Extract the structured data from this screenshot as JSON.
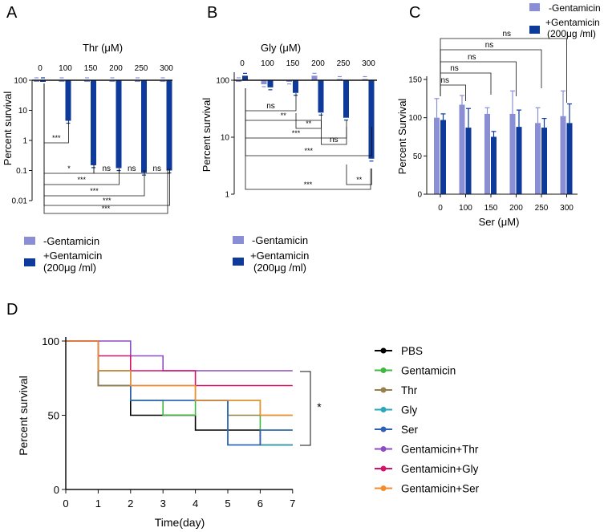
{
  "colors": {
    "light": "#8a8ed4",
    "dark": "#0e3a9c",
    "axis": "#111111"
  },
  "legend_abc": {
    "minus": "-Gentamicin",
    "plus_line1": "+Gentamicin",
    "plus_line2": "(200μg /ml)"
  },
  "chart_data": [
    {
      "panel": "A",
      "type": "bar",
      "title": "Thr (μM)",
      "ylabel": "Percent survival",
      "yscale": "log",
      "ylim": [
        0.01,
        100
      ],
      "yticks": [
        "0.01",
        "0.1",
        "1",
        "10",
        "100"
      ],
      "categories": [
        "0",
        "100",
        "150",
        "200",
        "250",
        "300"
      ],
      "series": [
        {
          "name": "-Gentamicin",
          "values": [
            100,
            100,
            100,
            100,
            100,
            100
          ]
        },
        {
          "name": "+Gentamicin",
          "values": [
            100,
            4.5,
            0.15,
            0.12,
            0.085,
            0.1
          ]
        }
      ],
      "significance": [
        {
          "a": 0,
          "b": 1,
          "label": "***"
        },
        {
          "a": 0,
          "b": 2,
          "label": "*"
        },
        {
          "a": 2,
          "b": 3,
          "label": "ns"
        },
        {
          "a": 3,
          "b": 4,
          "label": "ns"
        },
        {
          "a": 4,
          "b": 5,
          "label": "ns"
        },
        {
          "a": 0,
          "b": 3,
          "label": "***"
        },
        {
          "a": 0,
          "b": 4,
          "label": "***"
        },
        {
          "a": 0,
          "b": 5,
          "label": "***"
        },
        {
          "a": 0,
          "b": 6,
          "label": "***"
        }
      ]
    },
    {
      "panel": "B",
      "type": "bar",
      "title": "Gly (μM)",
      "ylabel": "Percent survival",
      "yscale": "log",
      "ylim": [
        1,
        100
      ],
      "yticks": [
        "1",
        "10",
        "100"
      ],
      "categories": [
        "0",
        "100",
        "150",
        "200",
        "250",
        "300"
      ],
      "series": [
        {
          "name": "-Gentamicin",
          "values": [
            100,
            85,
            95,
            120,
            105,
            105
          ]
        },
        {
          "name": "+Gentamicin",
          "values": [
            120,
            75,
            60,
            27,
            22,
            4.2
          ]
        }
      ],
      "significance": [
        {
          "a": 0,
          "b": 2,
          "label": "ns"
        },
        {
          "a": 0,
          "b": 3,
          "label": "**"
        },
        {
          "a": 2,
          "b": 3,
          "label": "**"
        },
        {
          "a": 0,
          "b": 4,
          "label": "***"
        },
        {
          "a": 3,
          "b": 4,
          "label": "ns"
        },
        {
          "a": 0,
          "b": 5,
          "label": "***"
        },
        {
          "a": 4,
          "b": 5,
          "label": "**"
        },
        {
          "a": 0,
          "b": 6,
          "label": "***"
        }
      ]
    },
    {
      "panel": "C",
      "type": "bar",
      "title": "",
      "xlabel": "Ser (μM)",
      "ylabel": "Percent Survival",
      "yscale": "linear",
      "ylim": [
        0,
        150
      ],
      "yticks": [
        "0",
        "50",
        "100",
        "150"
      ],
      "categories": [
        "0",
        "100",
        "150",
        "200",
        "250",
        "300"
      ],
      "series": [
        {
          "name": "-Gentamicin",
          "values": [
            100,
            117,
            105,
            105,
            93,
            102
          ],
          "errors": [
            25,
            12,
            8,
            30,
            20,
            33
          ]
        },
        {
          "name": "+Gentamicin",
          "values": [
            97,
            87,
            75,
            88,
            87,
            93
          ],
          "errors": [
            8,
            25,
            7,
            22,
            12,
            25
          ]
        }
      ],
      "significance": [
        {
          "b": 1,
          "label": "ns"
        },
        {
          "b": 2,
          "label": "ns"
        },
        {
          "b": 3,
          "label": "ns"
        },
        {
          "b": 4,
          "label": "ns"
        },
        {
          "b": 5,
          "label": "ns"
        }
      ]
    },
    {
      "panel": "D",
      "type": "line",
      "step": true,
      "xlabel": "Time(day)",
      "ylabel": "Percent survival",
      "xlim": [
        0,
        7
      ],
      "ylim": [
        0,
        100
      ],
      "xticks": [
        "0",
        "1",
        "2",
        "3",
        "4",
        "5",
        "6",
        "7"
      ],
      "yticks": [
        "0",
        "50",
        "100"
      ],
      "annotation": "*",
      "series": [
        {
          "name": "PBS",
          "color": "#000000",
          "x": [
            0,
            1,
            2,
            4,
            6,
            7
          ],
          "y": [
            100,
            70,
            50,
            40,
            30,
            30
          ]
        },
        {
          "name": "Gentamicin",
          "color": "#3fb83f",
          "x": [
            0,
            1,
            2,
            3,
            4,
            6,
            7
          ],
          "y": [
            100,
            80,
            60,
            50,
            60,
            40,
            40
          ]
        },
        {
          "name": "Thr",
          "color": "#98804a",
          "x": [
            0,
            1,
            2,
            4,
            5,
            7
          ],
          "y": [
            100,
            70,
            70,
            60,
            50,
            50
          ]
        },
        {
          "name": "Gly",
          "color": "#2aa7b8",
          "x": [
            0,
            1,
            2,
            4,
            5,
            7
          ],
          "y": [
            100,
            80,
            60,
            60,
            30,
            30
          ]
        },
        {
          "name": "Ser",
          "color": "#2f5fb7",
          "x": [
            0,
            1,
            2,
            4,
            5,
            6,
            7
          ],
          "y": [
            100,
            80,
            60,
            60,
            30,
            40,
            40
          ]
        },
        {
          "name": "Gentamicin+Thr",
          "color": "#8c4cc2",
          "x": [
            0,
            1,
            2,
            3,
            7
          ],
          "y": [
            100,
            100,
            90,
            80,
            80
          ]
        },
        {
          "name": "Gentamicin+Gly",
          "color": "#d4126a",
          "x": [
            0,
            1,
            2,
            4,
            7
          ],
          "y": [
            100,
            90,
            80,
            70,
            70
          ]
        },
        {
          "name": "Gentamicin+Ser",
          "color": "#f28d2a",
          "x": [
            0,
            1,
            2,
            4,
            6,
            7
          ],
          "y": [
            100,
            80,
            70,
            60,
            50,
            50
          ]
        }
      ]
    }
  ]
}
